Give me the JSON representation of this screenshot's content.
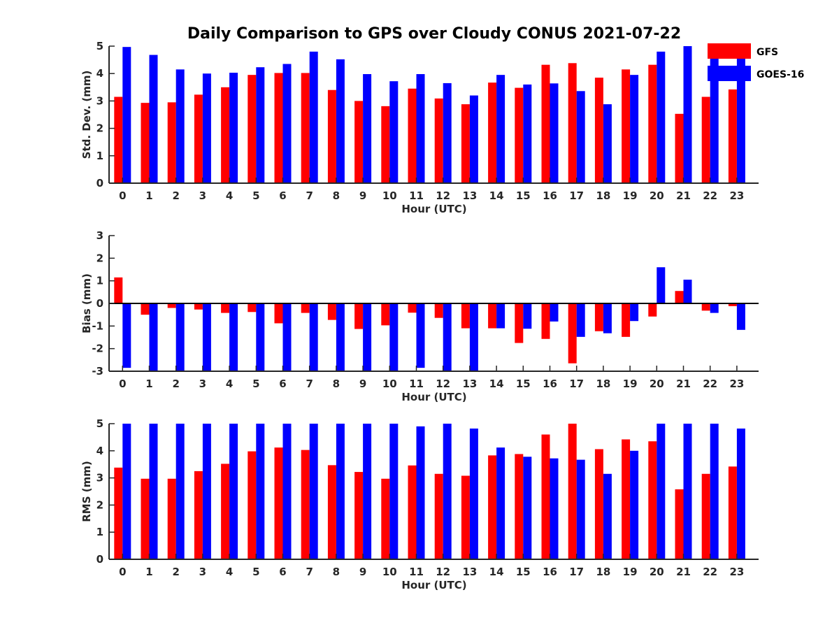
{
  "title": "Daily Comparison to GPS over Cloudy CONUS 2021-07-22",
  "legend": [
    {
      "name": "GFS",
      "color": "#ff0000"
    },
    {
      "name": "GOES-16",
      "color": "#0000ff"
    }
  ],
  "chart_data": [
    {
      "type": "bar",
      "ylabel": "Std. Dev. (mm)",
      "xlabel": "Hour (UTC)",
      "ylim": [
        0,
        5
      ],
      "yticks": [
        0,
        1,
        2,
        3,
        4,
        5
      ],
      "categories": [
        "0",
        "1",
        "2",
        "3",
        "4",
        "5",
        "6",
        "7",
        "8",
        "9",
        "10",
        "11",
        "12",
        "13",
        "14",
        "15",
        "16",
        "17",
        "18",
        "19",
        "20",
        "21",
        "22",
        "23"
      ],
      "series": [
        {
          "name": "GFS",
          "values": [
            3.15,
            2.93,
            2.95,
            3.23,
            3.5,
            3.95,
            4.02,
            4.02,
            3.4,
            3.0,
            2.81,
            3.45,
            3.09,
            2.88,
            3.67,
            3.48,
            4.32,
            4.38,
            3.85,
            4.15,
            4.32,
            2.53,
            3.15,
            3.42
          ]
        },
        {
          "name": "GOES-16",
          "values": [
            4.97,
            4.68,
            4.15,
            4.0,
            4.03,
            4.23,
            4.35,
            4.8,
            4.52,
            3.98,
            3.72,
            3.98,
            3.65,
            3.2,
            3.95,
            3.6,
            3.64,
            3.36,
            2.88,
            3.95,
            4.8,
            5.0,
            5.0,
            4.72
          ]
        }
      ]
    },
    {
      "type": "bar",
      "ylabel": "Bias (mm)",
      "xlabel": "Hour (UTC)",
      "ylim": [
        -3,
        3
      ],
      "yticks": [
        -3,
        -2,
        -1,
        0,
        1,
        2,
        3
      ],
      "categories": [
        "0",
        "1",
        "2",
        "3",
        "4",
        "5",
        "6",
        "7",
        "8",
        "9",
        "10",
        "11",
        "12",
        "13",
        "14",
        "15",
        "16",
        "17",
        "18",
        "19",
        "20",
        "21",
        "22",
        "23"
      ],
      "series": [
        {
          "name": "GFS",
          "values": [
            1.15,
            -0.5,
            -0.2,
            -0.27,
            -0.42,
            -0.38,
            -0.88,
            -0.42,
            -0.73,
            -1.13,
            -0.97,
            -0.41,
            -0.64,
            -1.1,
            -1.1,
            -1.75,
            -1.57,
            -2.65,
            -1.23,
            -1.48,
            -0.58,
            0.55,
            -0.32,
            -0.12
          ]
        },
        {
          "name": "GOES-16",
          "values": [
            -2.85,
            -3.0,
            -3.0,
            -3.0,
            -3.0,
            -3.0,
            -3.0,
            -3.0,
            -3.0,
            -3.0,
            -3.0,
            -2.85,
            -3.0,
            -3.0,
            -1.1,
            -1.12,
            -0.8,
            -1.48,
            -1.32,
            -0.78,
            1.6,
            1.05,
            -0.42,
            -1.17
          ]
        }
      ]
    },
    {
      "type": "bar",
      "ylabel": "RMS (mm)",
      "xlabel": "Hour (UTC)",
      "ylim": [
        0,
        5
      ],
      "yticks": [
        0,
        1,
        2,
        3,
        4,
        5
      ],
      "categories": [
        "0",
        "1",
        "2",
        "3",
        "4",
        "5",
        "6",
        "7",
        "8",
        "9",
        "10",
        "11",
        "12",
        "13",
        "14",
        "15",
        "16",
        "17",
        "18",
        "19",
        "20",
        "21",
        "22",
        "23"
      ],
      "series": [
        {
          "name": "GFS",
          "values": [
            3.38,
            2.97,
            2.97,
            3.25,
            3.52,
            3.98,
            4.12,
            4.03,
            3.47,
            3.22,
            2.97,
            3.46,
            3.15,
            3.08,
            3.83,
            3.88,
            4.6,
            5.0,
            4.06,
            4.42,
            4.35,
            2.58,
            3.15,
            3.42
          ]
        },
        {
          "name": "GOES-16",
          "values": [
            5.0,
            5.0,
            5.0,
            5.0,
            5.0,
            5.0,
            5.0,
            5.0,
            5.0,
            5.0,
            5.0,
            4.9,
            5.0,
            4.82,
            4.12,
            3.78,
            3.72,
            3.67,
            3.15,
            4.0,
            5.0,
            5.0,
            5.0,
            4.82
          ]
        }
      ]
    }
  ]
}
